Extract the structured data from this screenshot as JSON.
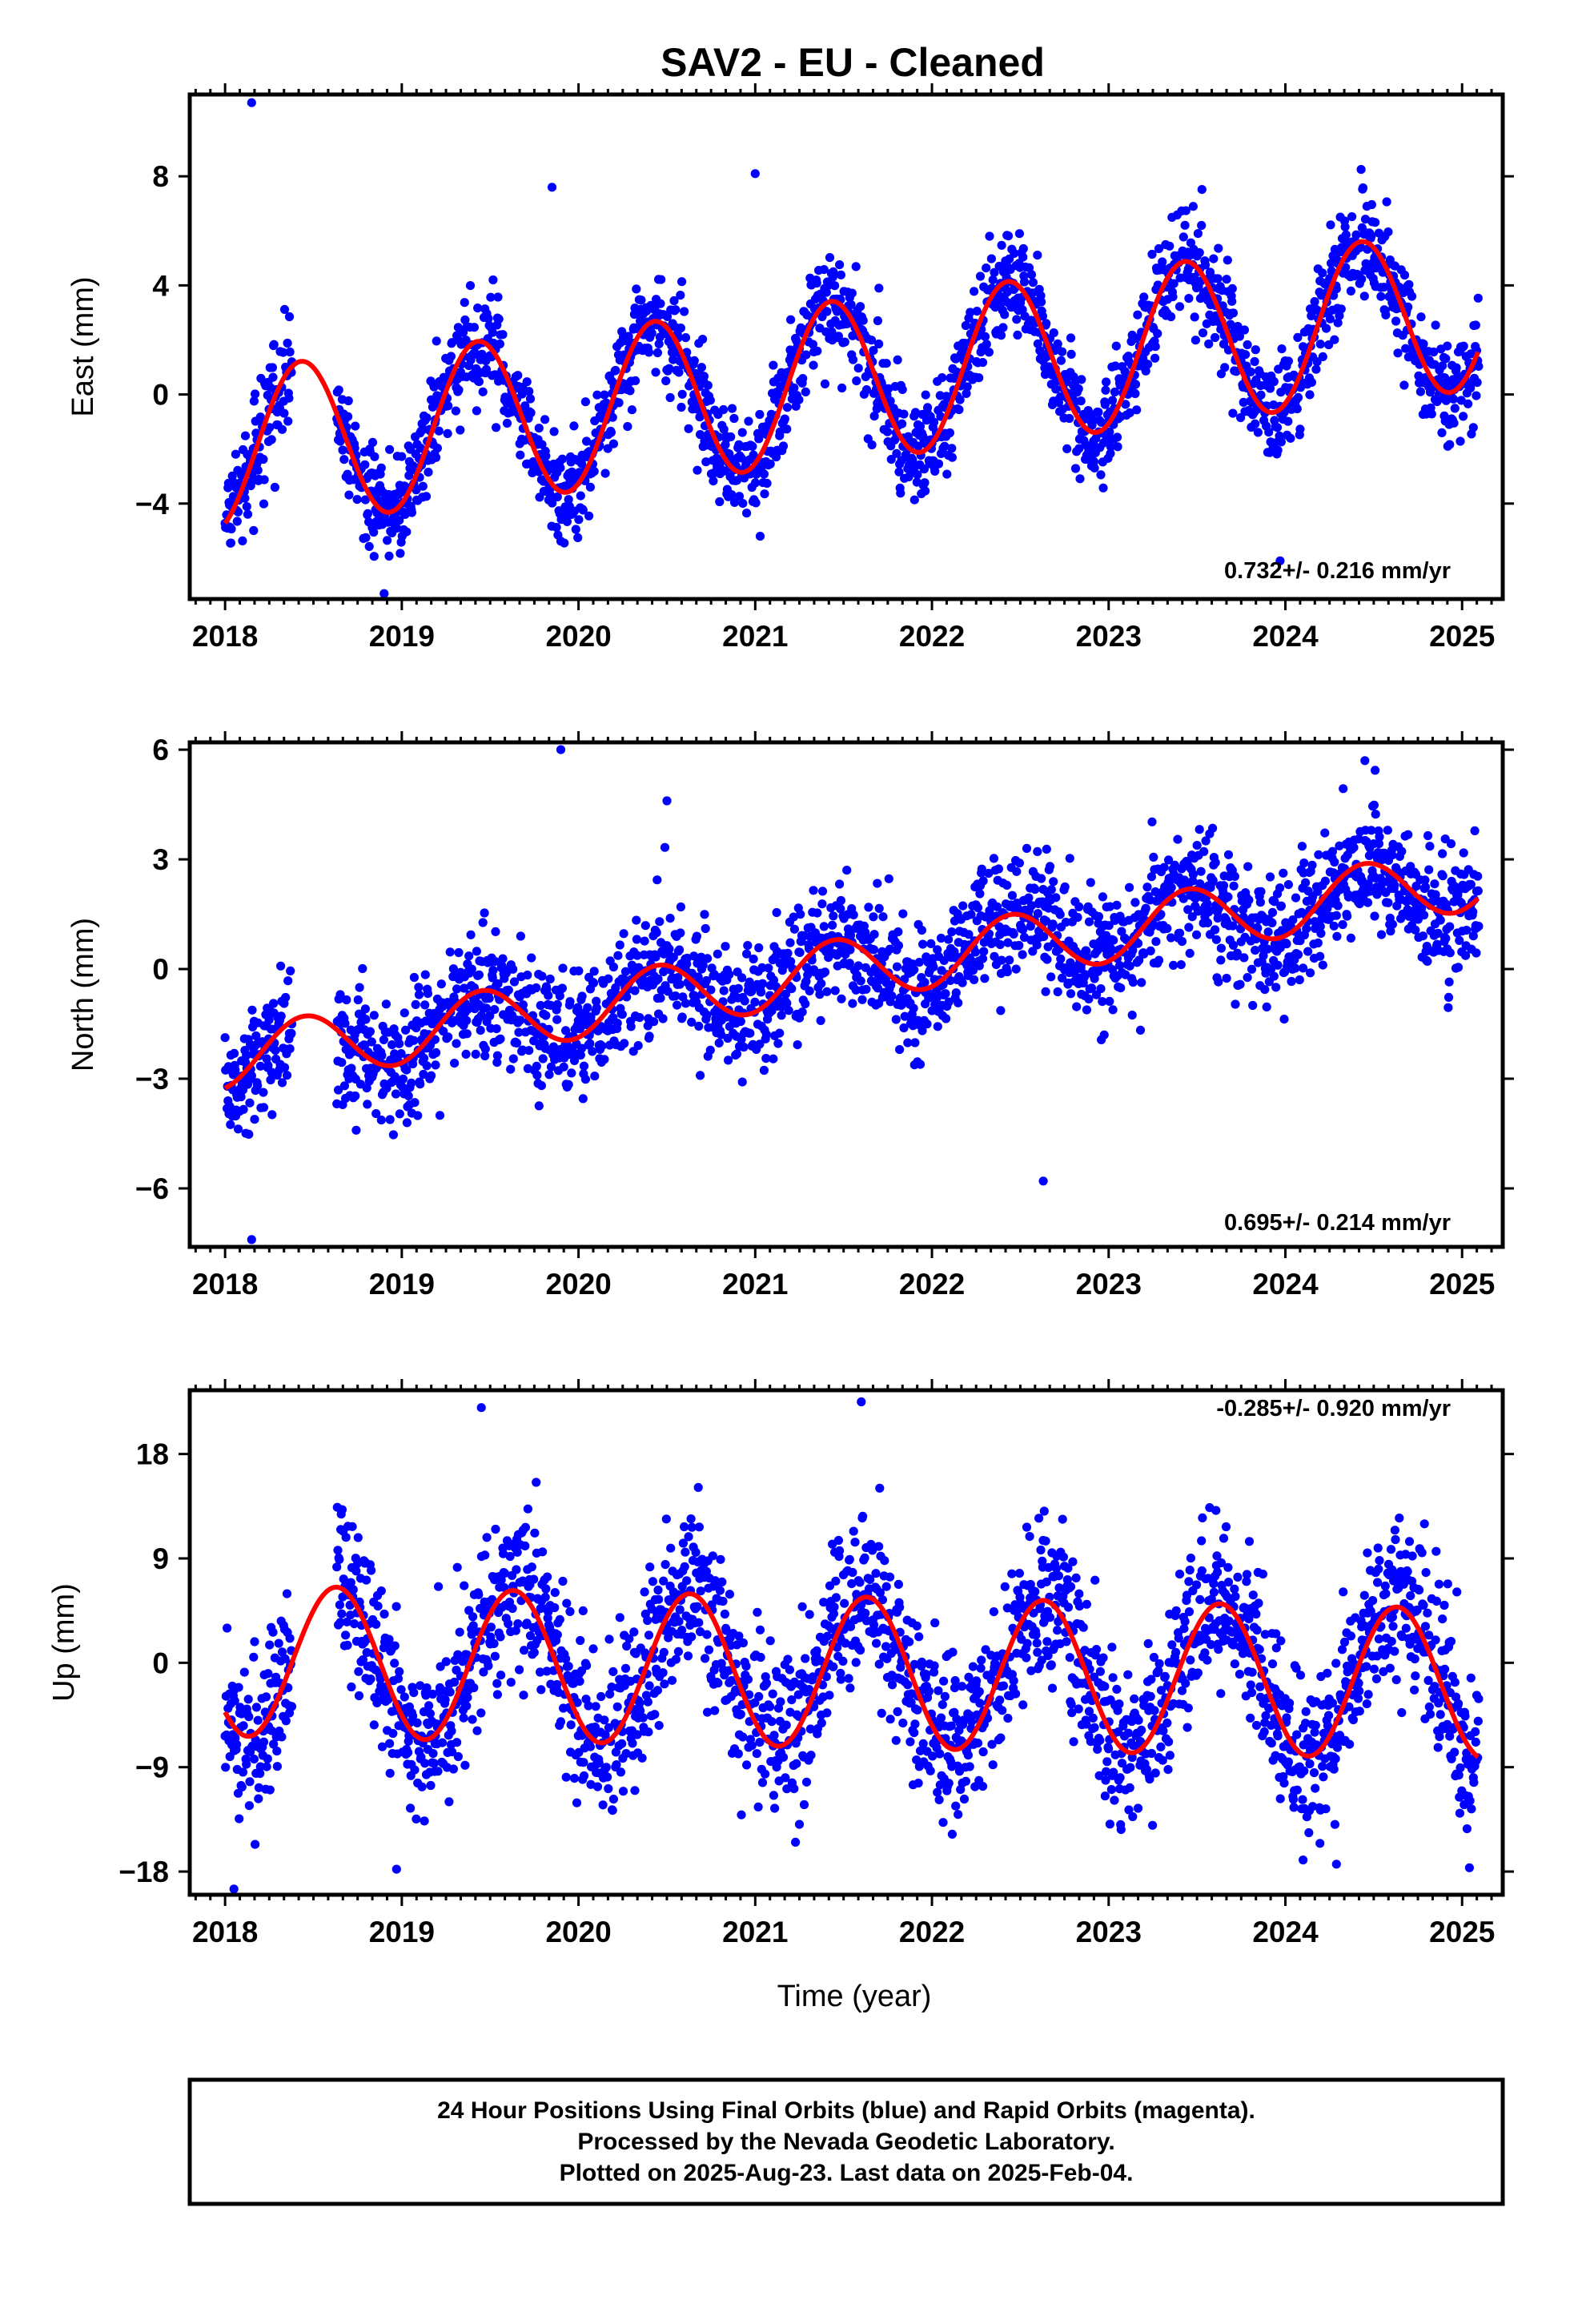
{
  "title": "SAV2  - EU - Cleaned",
  "xlabel": "Time (year)",
  "footer": {
    "line1": "24 Hour Positions Using Final Orbits (blue) and Rapid Orbits (magenta).",
    "line2": "Processed by the Nevada Geodetic Laboratory.",
    "line3": "Plotted on 2025-Aug-23. Last data on 2025-Feb-04."
  },
  "colors": {
    "points": "#0000ff",
    "fit": "#ff0000",
    "frame": "#000000"
  },
  "chart_data": [
    {
      "type": "scatter",
      "ylabel": "East (mm)",
      "rate_label": "0.732+/- 0.216 mm/yr",
      "xlim": [
        2017.8,
        2025.23
      ],
      "ylim": [
        -7.5,
        11
      ],
      "xticks": [
        2018,
        2019,
        2020,
        2021,
        2022,
        2023,
        2024,
        2025
      ],
      "yticks": [
        -4,
        0,
        4,
        8
      ],
      "grid": false,
      "model": {
        "offset": -2.05,
        "slope": 0.732,
        "amplitude": 2.95,
        "peak_phase": 0.43,
        "t0": 2018.0
      },
      "noise_sd": 0.95,
      "gap": [
        2018.38,
        2018.63
      ],
      "outliers": [
        [
          2018.15,
          10.7
        ],
        [
          2019.85,
          7.6
        ],
        [
          2021.0,
          8.1
        ],
        [
          2021.7,
          3.9
        ],
        [
          2018.9,
          -7.3
        ],
        [
          2023.97,
          -6.1
        ]
      ],
      "series": [
        {
          "name": "Final Orbits",
          "style": "points"
        },
        {
          "name": "Fit",
          "style": "line"
        }
      ]
    },
    {
      "type": "scatter",
      "ylabel": "North (mm)",
      "rate_label": "0.695+/- 0.214 mm/yr",
      "xlim": [
        2017.8,
        2025.23
      ],
      "ylim": [
        -7.6,
        6.2
      ],
      "xticks": [
        2018,
        2019,
        2020,
        2021,
        2022,
        2023,
        2024,
        2025
      ],
      "yticks": [
        -6,
        -3,
        0,
        3,
        6
      ],
      "grid": false,
      "model": {
        "offset": -2.45,
        "slope": 0.695,
        "amplitude": 0.85,
        "peak_phase": 0.45,
        "t0": 2018.0
      },
      "noise_sd": 0.85,
      "gap": [
        2018.38,
        2018.63
      ],
      "outliers": [
        [
          2019.9,
          6.0
        ],
        [
          2018.15,
          -7.4
        ],
        [
          2022.63,
          -5.8
        ],
        [
          2020.5,
          4.6
        ],
        [
          2024.45,
          5.7
        ]
      ],
      "series": [
        {
          "name": "Final Orbits",
          "style": "points"
        },
        {
          "name": "Fit",
          "style": "line"
        }
      ]
    },
    {
      "type": "scatter",
      "ylabel": "Up (mm)",
      "rate_label": "-0.285+/- 0.920 mm/yr",
      "xlim": [
        2017.8,
        2025.23
      ],
      "ylim": [
        -20,
        23.5
      ],
      "xticks": [
        2018,
        2019,
        2020,
        2021,
        2022,
        2023,
        2024,
        2025
      ],
      "yticks": [
        -18,
        -9,
        0,
        9,
        18
      ],
      "grid": false,
      "model": {
        "offset": 0.2,
        "slope": -0.285,
        "amplitude": 6.5,
        "peak_phase": 0.63,
        "t0": 2018.0
      },
      "noise_sd": 3.6,
      "gap": [
        2018.38,
        2018.63
      ],
      "outliers": [
        [
          2018.05,
          -19.5
        ],
        [
          2018.97,
          -17.8
        ],
        [
          2021.6,
          22.5
        ],
        [
          2019.45,
          22.0
        ],
        [
          2024.1,
          -17.0
        ]
      ],
      "series": [
        {
          "name": "Final Orbits",
          "style": "points"
        },
        {
          "name": "Fit",
          "style": "line"
        }
      ]
    }
  ]
}
